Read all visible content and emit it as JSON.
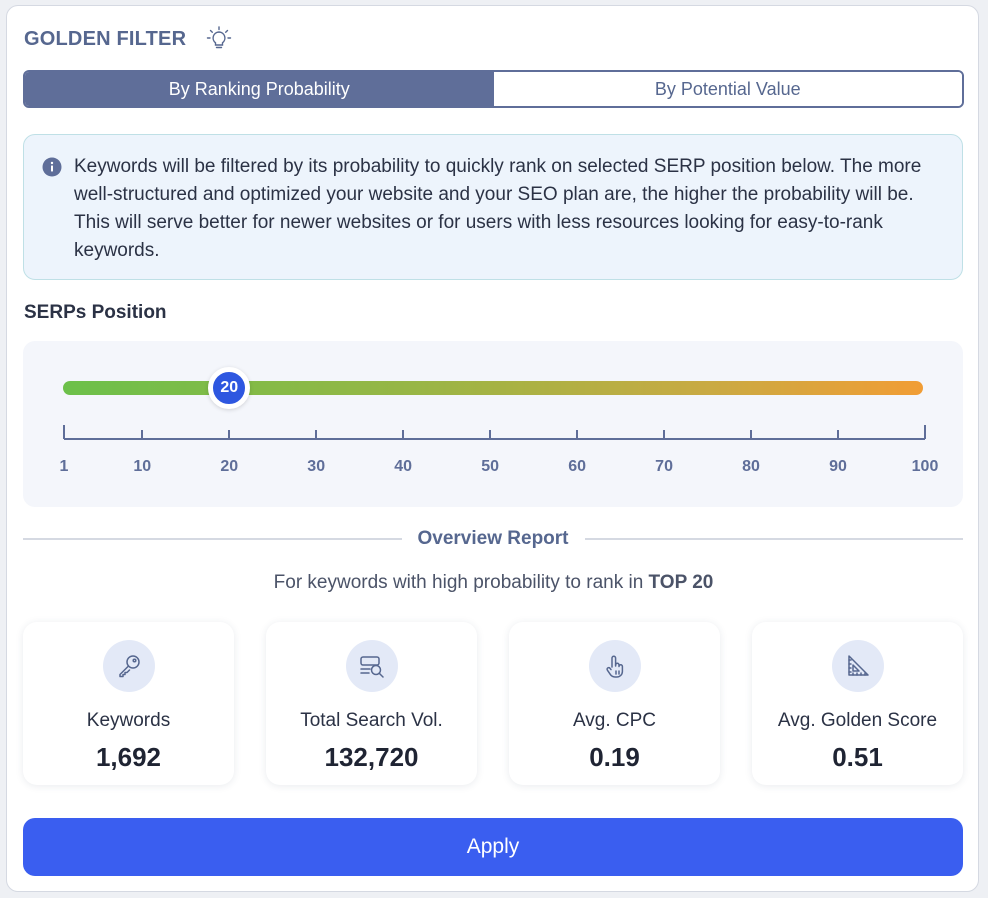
{
  "header": {
    "title": "GOLDEN FILTER",
    "icon": "lightbulb-icon"
  },
  "tabs": [
    {
      "label": "By Ranking Probability",
      "active": true
    },
    {
      "label": "By Potential Value",
      "active": false
    }
  ],
  "info": {
    "icon": "info-icon",
    "text": "Keywords will be filtered by its probability to quickly rank on selected SERP position below. The more well-structured and optimized your website and your SEO plan are, the higher the probability will be. This will serve better for newer websites or for users with less resources looking for easy-to-rank keywords."
  },
  "slider": {
    "label": "SERPs Position",
    "value": 20,
    "value_label": "20",
    "min": 1,
    "max": 100,
    "ticks": [
      "1",
      "10",
      "20",
      "30",
      "40",
      "50",
      "60",
      "70",
      "80",
      "90",
      "100"
    ],
    "colors": {
      "start": "#6cc04a",
      "end": "#f19d35",
      "thumb": "#2e57e0"
    }
  },
  "overview": {
    "title": "Overview Report",
    "subtitle_prefix": "For keywords with high probability to rank in ",
    "subtitle_bold": "TOP 20"
  },
  "cards": [
    {
      "icon": "key-icon",
      "label": "Keywords",
      "value": "1,692"
    },
    {
      "icon": "search-volume-icon",
      "label": "Total Search Vol.",
      "value": "132,720"
    },
    {
      "icon": "click-hand-icon",
      "label": "Avg. CPC",
      "value": "0.19"
    },
    {
      "icon": "ruler-triangle-icon",
      "label": "Avg. Golden Score",
      "value": "0.51"
    }
  ],
  "apply": {
    "label": "Apply",
    "color": "#3a5ef0"
  }
}
